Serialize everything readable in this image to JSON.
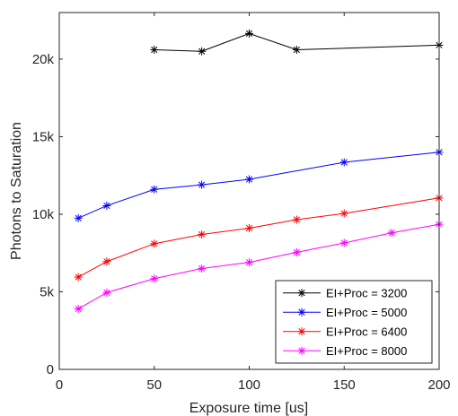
{
  "chart_data": {
    "type": "line",
    "xlabel": "Exposure time [us]",
    "ylabel": "Photons to Saturation",
    "xlim": [
      0,
      200
    ],
    "ylim": [
      0,
      23000
    ],
    "xticks": [
      0,
      50,
      100,
      150,
      200
    ],
    "yticks": [
      0,
      5000,
      10000,
      15000,
      20000
    ],
    "xtick_labels": [
      "0",
      "50",
      "100",
      "150",
      "200"
    ],
    "ytick_labels": [
      "0",
      "5k",
      "10k",
      "15k",
      "20k"
    ],
    "grid": false,
    "legend_position": "bottom-right",
    "marker": "asterisk",
    "series": [
      {
        "name": "EI+Proc = 3200",
        "color": "#000000",
        "x": [
          50,
          75,
          100,
          125,
          200
        ],
        "y": [
          20600,
          20500,
          21650,
          20600,
          20900
        ]
      },
      {
        "name": "EI+Proc = 5000",
        "color": "#0000ff",
        "x": [
          10,
          25,
          50,
          75,
          100,
          150,
          200
        ],
        "y": [
          9750,
          10550,
          11600,
          11900,
          12250,
          13350,
          14000
        ]
      },
      {
        "name": "EI+Proc = 6400",
        "color": "#ff0000",
        "x": [
          10,
          25,
          50,
          75,
          100,
          125,
          150,
          200
        ],
        "y": [
          5950,
          6950,
          8100,
          8700,
          9100,
          9650,
          10050,
          11050
        ]
      },
      {
        "name": "EI+Proc = 8000",
        "color": "#ff00ff",
        "x": [
          10,
          25,
          50,
          75,
          100,
          125,
          150,
          175,
          200
        ],
        "y": [
          3900,
          4950,
          5850,
          6500,
          6900,
          7550,
          8150,
          8800,
          9350
        ]
      }
    ]
  }
}
